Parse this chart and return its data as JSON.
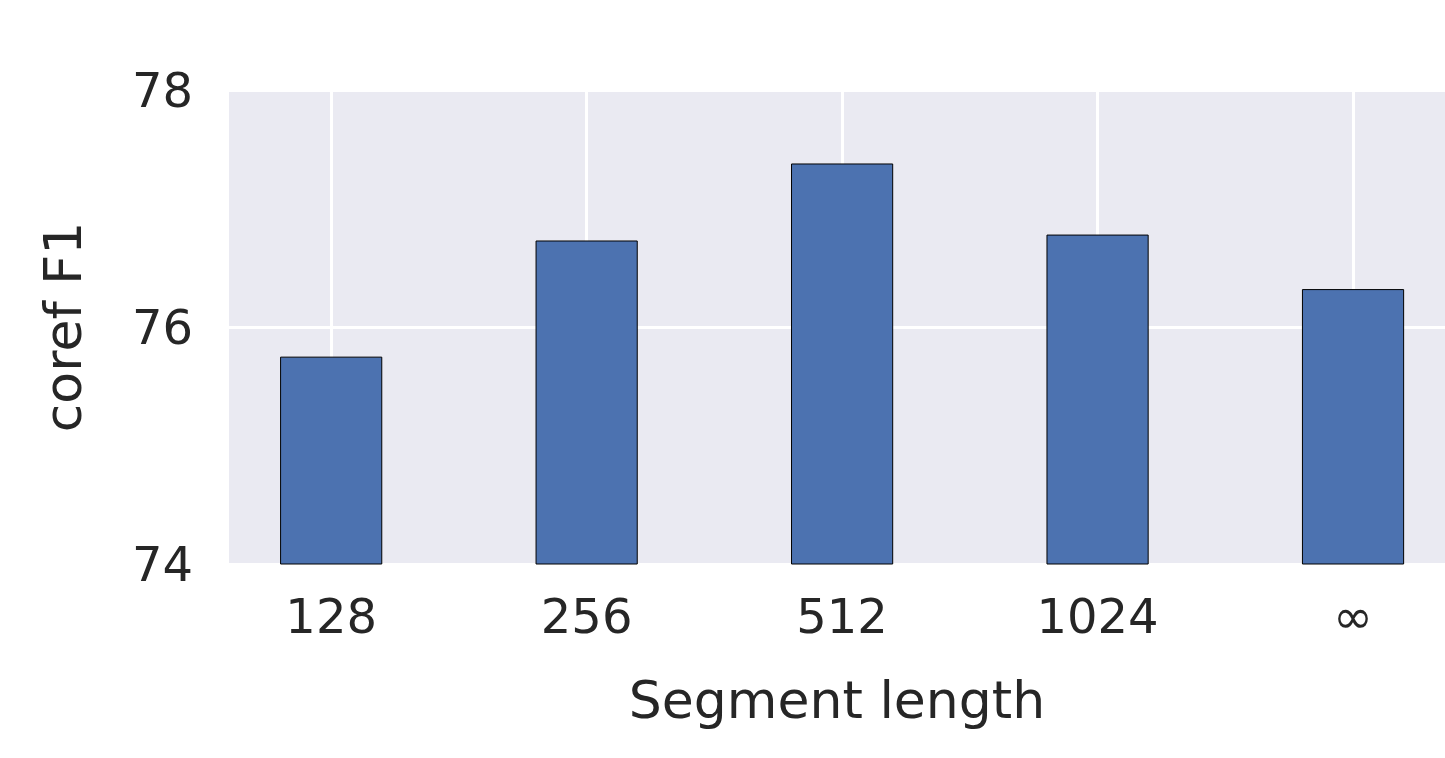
{
  "chart_data": {
    "type": "bar",
    "xlabel": "Segment length",
    "ylabel": "coref F1",
    "categories": [
      "128",
      "256",
      "512",
      "1024",
      "∞"
    ],
    "values": [
      75.75,
      76.73,
      77.38,
      76.78,
      76.32
    ],
    "color": "#4c72b0",
    "ylim": [
      74,
      78
    ],
    "yticks": [
      74,
      76,
      78
    ],
    "grid": true
  }
}
